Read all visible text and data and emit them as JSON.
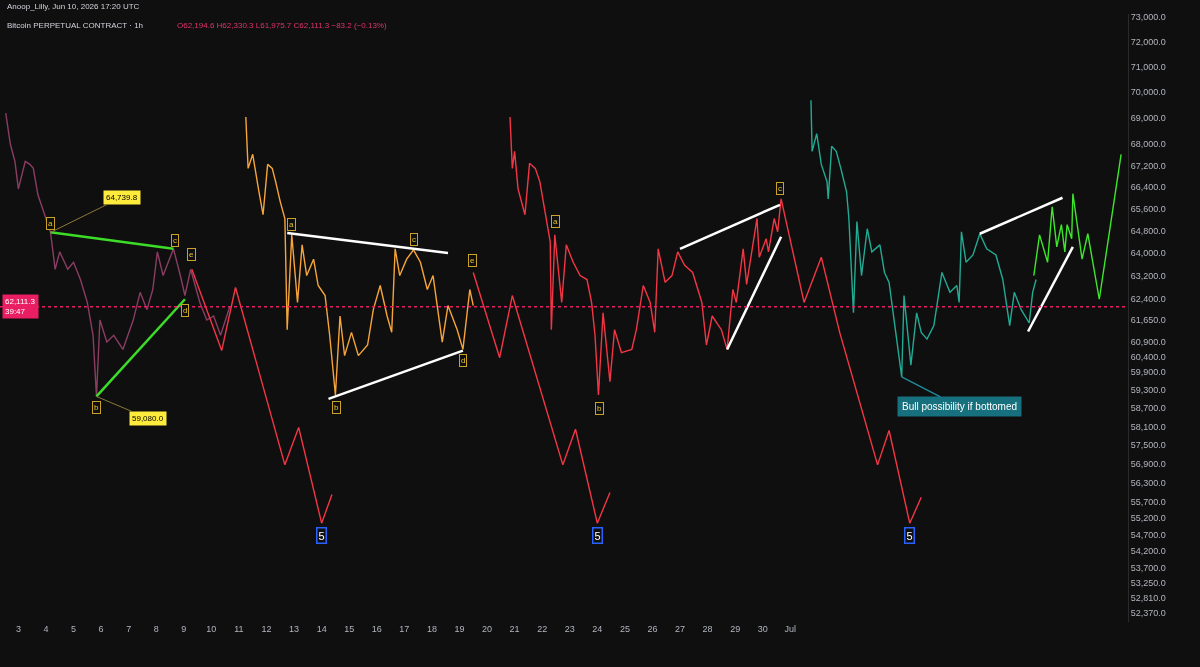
{
  "chart_data": {
    "type": "line",
    "title": "Bitcoin PERPETUAL CONTRACT · 1h",
    "subtitle": "O62,194.6 H62,330.3 L61,975.7 C62,111.3 −83.2 (−0.13%)",
    "legend": false,
    "log": true,
    "line_style": "solid",
    "xlim": [
      "2026-06-02T08:00",
      "2026-07-13T06:00"
    ],
    "xticks": [
      {
        "value": "2026-06-03",
        "label": "3"
      },
      {
        "value": "2026-06-04",
        "label": "4"
      },
      {
        "value": "2026-06-05",
        "label": "5"
      },
      {
        "value": "2026-06-06",
        "label": "6"
      },
      {
        "value": "2026-06-07",
        "label": "7"
      },
      {
        "value": "2026-06-08",
        "label": "8"
      },
      {
        "value": "2026-06-09",
        "label": "9"
      },
      {
        "value": "2026-06-10",
        "label": "10"
      },
      {
        "value": "2026-06-11",
        "label": "11"
      },
      {
        "value": "2026-06-12",
        "label": "12"
      },
      {
        "value": "2026-06-13",
        "label": "13"
      },
      {
        "value": "2026-06-14",
        "label": "14"
      },
      {
        "value": "2026-06-15",
        "label": "15"
      },
      {
        "value": "2026-06-16",
        "label": "16"
      },
      {
        "value": "2026-06-17",
        "label": "17"
      },
      {
        "value": "2026-06-18",
        "label": "18"
      },
      {
        "value": "2026-06-19",
        "label": "19"
      },
      {
        "value": "2026-06-20",
        "label": "20"
      },
      {
        "value": "2026-06-21",
        "label": "21"
      },
      {
        "value": "2026-06-22",
        "label": "22"
      },
      {
        "value": "2026-06-23",
        "label": "23"
      },
      {
        "value": "2026-06-24",
        "label": "24"
      },
      {
        "value": "2026-06-25",
        "label": "25"
      },
      {
        "value": "2026-06-26",
        "label": "26"
      },
      {
        "value": "2026-06-27",
        "label": "27"
      },
      {
        "value": "2026-06-28",
        "label": "28"
      },
      {
        "value": "2026-06-29",
        "label": "29"
      },
      {
        "value": "2026-06-30",
        "label": "30"
      },
      {
        "value": "2026-07-01",
        "label": "Jul"
      }
    ],
    "ylim": [
      52100,
      73120
    ],
    "yticks": [
      {
        "value": 52370,
        "label": "52,370.0"
      },
      {
        "value": 52810,
        "label": "52,810.0"
      },
      {
        "value": 53250,
        "label": "53,250.0"
      },
      {
        "value": 53700,
        "label": "53,700.0"
      },
      {
        "value": 54200,
        "label": "54,200.0"
      },
      {
        "value": 54700,
        "label": "54,700.0"
      },
      {
        "value": 55200,
        "label": "55,200.0"
      },
      {
        "value": 55700,
        "label": "55,700.0"
      },
      {
        "value": 56300,
        "label": "56,300.0"
      },
      {
        "value": 56900,
        "label": "56,900.0"
      },
      {
        "value": 57500,
        "label": "57,500.0"
      },
      {
        "value": 58100,
        "label": "58,100.0"
      },
      {
        "value": 58700,
        "label": "58,700.0"
      },
      {
        "value": 59300,
        "label": "59,300.0"
      },
      {
        "value": 59900,
        "label": "59,900.0"
      },
      {
        "value": 60400,
        "label": "60,400.0"
      },
      {
        "value": 60900,
        "label": "60,900.0"
      },
      {
        "value": 61650,
        "label": "61,650.0"
      },
      {
        "value": 62400,
        "label": "62,400.0"
      },
      {
        "value": 63200,
        "label": "63,200.0"
      },
      {
        "value": 64000,
        "label": "64,000.0"
      },
      {
        "value": 64800,
        "label": "64,800.0"
      },
      {
        "value": 65600,
        "label": "65,600.0"
      },
      {
        "value": 66400,
        "label": "66,400.0"
      },
      {
        "value": 67200,
        "label": "67,200.0"
      },
      {
        "value": 68000,
        "label": "68,000.0"
      },
      {
        "value": 69000,
        "label": "69,000.0"
      },
      {
        "value": 70000,
        "label": "70,000.0"
      },
      {
        "value": 71000,
        "label": "71,000.0"
      },
      {
        "value": 72000,
        "label": "72,000.0"
      },
      {
        "value": 73000,
        "label": "73,000.0"
      }
    ],
    "ref_lines": [
      {
        "axis": "y",
        "value": 62111.3,
        "label": "62,111.3\n39:47",
        "color": "#e91e63",
        "line_style": "dotted"
      }
    ],
    "series": [
      {
        "type": "line",
        "color": "#8a3d63",
        "x": [
          "2026-06-02T13:00",
          "2026-06-02T17:00",
          "2026-06-02T21:00",
          "2026-06-03T00:00",
          "2026-06-03T06:00",
          "2026-06-03T10:00",
          "2026-06-03T13:00",
          "2026-06-03T17:00",
          "2026-06-03T22:00",
          "2026-06-04T04:00",
          "2026-06-04T08:00",
          "2026-06-04T12:00",
          "2026-06-04T19:00",
          "2026-06-05T00:00",
          "2026-06-05T06:00",
          "2026-06-05T12:00",
          "2026-06-05T17:00",
          "2026-06-05T20:00",
          "2026-06-05T23:00",
          "2026-06-06T05:00",
          "2026-06-06T11:00",
          "2026-06-06T19:00",
          "2026-06-07T04:00",
          "2026-06-07T10:00",
          "2026-06-07T16:00",
          "2026-06-07T21:00",
          "2026-06-08T01:00",
          "2026-06-08T06:00",
          "2026-06-08T15:00",
          "2026-06-08T21:00",
          "2026-06-09T01:00",
          "2026-06-09T06:00",
          "2026-06-09T14:00",
          "2026-06-09T20:00",
          "2026-06-10T02:00",
          "2026-06-10T08:00",
          "2026-06-10T16:00"
        ],
        "values": [
          69190,
          68000,
          67350,
          66330,
          67350,
          67240,
          67090,
          66110,
          65490,
          64739.8,
          63420,
          64040,
          63420,
          63670,
          63060,
          62260,
          61130,
          59080,
          61650,
          60900,
          61130,
          60650,
          61650,
          62610,
          62010,
          62710,
          64040,
          63200,
          64150,
          63200,
          62500,
          63420,
          62260,
          61650,
          61790,
          61130,
          62110
        ]
      },
      {
        "type": "line",
        "color": "#f23645",
        "x": [
          "2026-06-09T07:00",
          "2026-06-10T09:00",
          "2026-06-10T21:00",
          "2026-06-12T16:00",
          "2026-06-13T04:00",
          "2026-06-14T00:00",
          "2026-06-14T09:00"
        ],
        "values": [
          63420,
          60610,
          62780,
          56870,
          58070,
          55050,
          55940
        ]
      },
      {
        "type": "line",
        "color": "#f7a53a",
        "x": [
          "2026-06-11T06:00",
          "2026-06-11T08:00",
          "2026-06-11T12:00",
          "2026-06-11T17:00",
          "2026-06-11T21:00",
          "2026-06-12T01:00",
          "2026-06-12T05:00",
          "2026-06-12T08:00",
          "2026-06-12T12:00",
          "2026-06-12T16:00",
          "2026-06-12T18:00",
          "2026-06-12T22:00",
          "2026-06-13T03:00",
          "2026-06-13T07:00",
          "2026-06-13T11:00",
          "2026-06-13T17:00",
          "2026-06-13T21:00",
          "2026-06-14T03:00",
          "2026-06-14T07:00",
          "2026-06-14T12:00",
          "2026-06-14T16:00",
          "2026-06-14T20:00",
          "2026-06-15T02:00",
          "2026-06-15T08:00",
          "2026-06-15T16:00",
          "2026-06-15T21:00",
          "2026-06-16T03:00",
          "2026-06-16T09:00",
          "2026-06-16T13:00",
          "2026-06-16T16:00",
          "2026-06-16T20:00",
          "2026-06-17T02:00",
          "2026-06-17T08:00",
          "2026-06-17T14:00",
          "2026-06-17T20:00",
          "2026-06-18T01:00",
          "2026-06-18T09:00",
          "2026-06-18T14:00",
          "2026-06-18T22:00",
          "2026-06-19T03:00",
          "2026-06-19T09:00",
          "2026-06-19T12:00"
        ],
        "values": [
          69040,
          67090,
          67620,
          66330,
          65380,
          67240,
          67090,
          66590,
          65850,
          65240,
          61320,
          64650,
          62260,
          64290,
          63200,
          63780,
          62850,
          62500,
          61130,
          59130,
          61790,
          60440,
          61230,
          60440,
          60800,
          62010,
          62850,
          61790,
          61230,
          64150,
          63200,
          63780,
          64110,
          63670,
          62710,
          63200,
          60900,
          62150,
          61320,
          60650,
          62710,
          62150
        ]
      },
      {
        "type": "line",
        "color": "#f23645",
        "x": [
          "2026-06-19T12:00",
          "2026-06-20T11:00",
          "2026-06-20T22:00",
          "2026-06-22T18:00",
          "2026-06-23T05:00",
          "2026-06-24T00:00",
          "2026-06-24T11:00"
        ],
        "values": [
          63310,
          60370,
          62500,
          56870,
          58010,
          55050,
          56000
        ]
      },
      {
        "type": "line",
        "color": "#f23645",
        "x": [
          "2026-06-20T20:00",
          "2026-06-20T22:00",
          "2026-06-21T00:00",
          "2026-06-21T03:00",
          "2026-06-21T09:00",
          "2026-06-21T13:00",
          "2026-06-21T18:00",
          "2026-06-21T22:00",
          "2026-06-22T02:00",
          "2026-06-22T07:00",
          "2026-06-22T08:00",
          "2026-06-22T11:00",
          "2026-06-22T17:00",
          "2026-06-22T21:00",
          "2026-06-23T03:00",
          "2026-06-23T09:00",
          "2026-06-23T15:00",
          "2026-06-23T19:00",
          "2026-06-23T22:00",
          "2026-06-24T01:00",
          "2026-06-24T05:00",
          "2026-06-24T11:00",
          "2026-06-24T15:00",
          "2026-06-24T21:00",
          "2026-06-25T06:00",
          "2026-06-25T10:00",
          "2026-06-25T16:00",
          "2026-06-25T22:00",
          "2026-06-26T02:00",
          "2026-06-26T05:00",
          "2026-06-26T11:00",
          "2026-06-26T17:00",
          "2026-06-26T22:00",
          "2026-06-27T04:00",
          "2026-06-27T11:00",
          "2026-06-27T19:00",
          "2026-06-27T23:00",
          "2026-06-28T04:00",
          "2026-06-28T12:00",
          "2026-06-28T17:00",
          "2026-06-28T22:00",
          "2026-06-29T01:00"
        ],
        "values": [
          69040,
          67090,
          67730,
          66330,
          65380,
          67280,
          67090,
          66590,
          65600,
          64400,
          61320,
          64650,
          62260,
          64290,
          63670,
          63200,
          63060,
          62260,
          61130,
          59130,
          61900,
          59570,
          61320,
          60540,
          60650,
          61320,
          62850,
          62260,
          61230,
          64150,
          62960,
          63200,
          64040,
          63560,
          63310,
          62260,
          60800,
          61790,
          61320,
          60650,
          62710,
          62260
        ]
      },
      {
        "type": "line",
        "color": "#f23645",
        "x": [
          "2026-06-29T01:00",
          "2026-06-29T07:00",
          "2026-06-29T10:00",
          "2026-06-29T19:00",
          "2026-06-29T21:00",
          "2026-06-30T03:00",
          "2026-06-30T05:00",
          "2026-06-30T10:00",
          "2026-06-30T13:00",
          "2026-06-30T16:00",
          "2026-07-01T12:00",
          "2026-07-02T03:00",
          "2026-07-02T19:00",
          "2026-07-04T04:00",
          "2026-07-04T14:00",
          "2026-07-05T08:00",
          "2026-07-05T18:00"
        ],
        "values": [
          62260,
          64150,
          62890,
          65240,
          63850,
          64510,
          64040,
          65240,
          64760,
          65960,
          62260,
          63850,
          61230,
          56870,
          57970,
          55050,
          55850
        ]
      },
      {
        "type": "line",
        "color": "#22ab94",
        "x": [
          "2026-07-01T18:00",
          "2026-07-01T19:00",
          "2026-07-01T23:00",
          "2026-07-02T03:00",
          "2026-07-02T08:00",
          "2026-07-02T09:00",
          "2026-07-02T12:00",
          "2026-07-02T16:00",
          "2026-07-02T20:00",
          "2026-07-03T01:00",
          "2026-07-03T03:00",
          "2026-07-03T07:00",
          "2026-07-03T10:00",
          "2026-07-03T14:00",
          "2026-07-03T19:00",
          "2026-07-03T23:00",
          "2026-07-04T06:00",
          "2026-07-04T10:00",
          "2026-07-04T14:00",
          "2026-07-04T19:00",
          "2026-07-05T01:00",
          "2026-07-05T03:00",
          "2026-07-05T09:00",
          "2026-07-05T14:00",
          "2026-07-05T18:00",
          "2026-07-05T23:00",
          "2026-07-06T05:00",
          "2026-07-06T12:00",
          "2026-07-06T19:00",
          "2026-07-07T01:00",
          "2026-07-07T03:00",
          "2026-07-07T05:00",
          "2026-07-07T09:00",
          "2026-07-07T15:00",
          "2026-07-07T21:00",
          "2026-07-08T03:00",
          "2026-07-08T11:00",
          "2026-07-08T17:00",
          "2026-07-08T23:00",
          "2026-07-09T03:00",
          "2026-07-09T09:00",
          "2026-07-09T16:00",
          "2026-07-09T19:00",
          "2026-07-09T22:00"
        ],
        "values": [
          69690,
          67730,
          68400,
          67240,
          66590,
          65960,
          67920,
          67730,
          67090,
          66220,
          65240,
          61900,
          65130,
          63200,
          64870,
          64040,
          64290,
          63310,
          62960,
          61460,
          59730,
          62500,
          60120,
          61900,
          61230,
          61000,
          61460,
          63310,
          62610,
          62850,
          62260,
          64760,
          63670,
          63930,
          64690,
          64150,
          63930,
          63060,
          61460,
          62610,
          62010,
          61550,
          62610,
          63060
        ]
      },
      {
        "type": "line",
        "color": "#3ee62c",
        "x": [
          "2026-07-09T20:00",
          "2026-07-10T01:00",
          "2026-07-10T08:00",
          "2026-07-10T12:00",
          "2026-07-10T16:00",
          "2026-07-10T20:00",
          "2026-07-10T23:00",
          "2026-07-11T01:00",
          "2026-07-11T05:00",
          "2026-07-11T06:00",
          "2026-07-11T14:00",
          "2026-07-11T19:00",
          "2026-07-12T05:00",
          "2026-07-13T00:00"
        ],
        "values": [
          63200,
          64650,
          63670,
          65670,
          64220,
          65020,
          64040,
          65020,
          64510,
          66150,
          63780,
          64690,
          62370,
          67620
        ]
      },
      {
        "type": "line",
        "color": "#3cdc28",
        "x": [
          "2026-06-04T04:00",
          "2026-06-08T15:00"
        ],
        "values": [
          64739.8,
          64150
        ]
      },
      {
        "type": "line",
        "color": "#3cdc28",
        "x": [
          "2026-06-05T20:00",
          "2026-06-09T01:00"
        ],
        "values": [
          59080,
          62370
        ]
      },
      {
        "type": "line",
        "color": "#ffffff",
        "x": [
          "2026-06-12T18:00",
          "2026-06-18T14:00"
        ],
        "values": [
          64720,
          64000
        ]
      },
      {
        "type": "line",
        "color": "#ffffff",
        "x": [
          "2026-06-14T06:00",
          "2026-06-19T03:00"
        ],
        "values": [
          59000,
          60610
        ]
      },
      {
        "type": "line",
        "color": "#ffffff",
        "x": [
          "2026-06-27T00:00",
          "2026-06-30T15:00"
        ],
        "values": [
          64150,
          65740
        ]
      },
      {
        "type": "line",
        "color": "#ffffff",
        "x": [
          "2026-06-28T17:00",
          "2026-06-30T16:00"
        ],
        "values": [
          60650,
          64580
        ]
      },
      {
        "type": "line",
        "color": "#ffffff",
        "x": [
          "2026-07-07T21:00",
          "2026-07-10T21:00"
        ],
        "values": [
          64690,
          66000
        ]
      },
      {
        "type": "line",
        "color": "#ffffff",
        "x": [
          "2026-07-09T15:00",
          "2026-07-11T06:00"
        ],
        "values": [
          61260,
          64220
        ]
      }
    ],
    "annotations": [
      "Anoop_Lilly, Jun 10, 2026 17:20 UTC",
      {
        "text": "a",
        "x": "2026-06-04T04:00",
        "y": 65050
      },
      {
        "text": "b",
        "x": "2026-06-05T20:00",
        "y": 58730
      },
      {
        "text": "c",
        "x": "2026-06-08T16:00",
        "y": 64440
      },
      {
        "text": "d",
        "x": "2026-06-09T01:00",
        "y": 61970
      },
      {
        "text": "e",
        "x": "2026-06-09T07:00",
        "y": 63960
      },
      {
        "text": "a",
        "x": "2026-06-12T22:00",
        "y": 65020
      },
      {
        "text": "b",
        "x": "2026-06-14T13:00",
        "y": 58730
      },
      {
        "text": "c",
        "x": "2026-06-17T08:00",
        "y": 64470
      },
      {
        "text": "d",
        "x": "2026-06-19T03:00",
        "y": 60280
      },
      {
        "text": "e",
        "x": "2026-06-19T11:00",
        "y": 63740
      },
      {
        "text": "a",
        "x": "2026-06-22T12:00",
        "y": 65130
      },
      {
        "text": "b",
        "x": "2026-06-24T02:00",
        "y": 58670
      },
      {
        "text": "c",
        "x": "2026-06-30T15:00",
        "y": 66330
      },
      {
        "text": "64,739.8",
        "x": "2026-06-04T04:00",
        "y": 64739.8
      },
      {
        "text": "59,080.0",
        "x": "2026-06-05T20:00",
        "y": 59080
      },
      {
        "text": "5",
        "x": "2026-06-14T00:00",
        "y": 54670
      },
      {
        "text": "5",
        "x": "2026-06-24T00:00",
        "y": 54670
      },
      {
        "text": "5",
        "x": "2026-07-05T08:00",
        "y": 54670
      },
      {
        "text": "Bull possibility if bottomed",
        "x": "2026-07-05T01:00",
        "y": 59730
      }
    ]
  }
}
